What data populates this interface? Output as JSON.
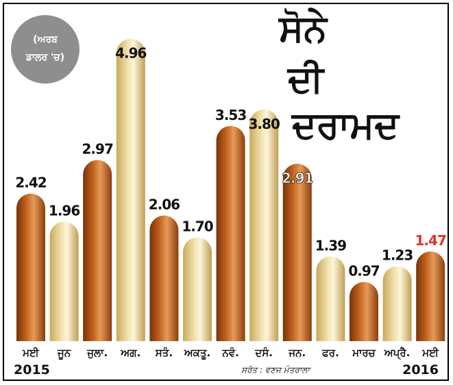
{
  "chart_data": {
    "type": "bar",
    "title": [
      "ਸੋਨੇ",
      "ਦੀ",
      "ਦਰਾਮਦ"
    ],
    "unit_label": [
      "(ਅਰਬ",
      "ਡਾਲਰ 'ਚ)"
    ],
    "categories": [
      "ਮਈ",
      "ਜੂਨ",
      "ਜੁਲਾ.",
      "ਅਗ.",
      "ਸਤੰ.",
      "ਅਕਤੂ.",
      "ਨਵੰ.",
      "ਦਸੰ.",
      "ਜਨ.",
      "ਫਰ.",
      "ਮਾਰਚ",
      "ਅਪ੍ਰੈ.",
      "ਮਈ"
    ],
    "values": [
      2.42,
      1.96,
      2.97,
      4.96,
      2.06,
      1.7,
      3.53,
      3.8,
      2.91,
      1.39,
      0.97,
      1.23,
      1.47
    ],
    "value_labels": [
      "2.42",
      "1.96",
      "2.97",
      "4.96",
      "2.06",
      "1.70",
      "3.53",
      "3.80",
      "2.91",
      "1.39",
      "0.97",
      "1.23",
      "1.47"
    ],
    "bar_colors": [
      "dark",
      "light",
      "dark",
      "light",
      "dark",
      "light",
      "dark",
      "light",
      "dark",
      "light",
      "dark",
      "light",
      "dark"
    ],
    "year_start": "2015",
    "year_end": "2016",
    "source": "ਸਰੋਤ : ਵਣਜ ਮੰਤਰਾਲਾ",
    "ylim": [
      0,
      5
    ],
    "grid": false,
    "legend": "none",
    "colors": {
      "dark_bar": "#b5561c",
      "dark_highlight": "#e9a06a",
      "light_bar": "#e8d39a",
      "light_highlight": "#fdf6dc",
      "value_text": "#111111",
      "value_text_on_dark": "#ffffff",
      "highlight_value": "#e0342a",
      "badge": "#8e8e8e"
    }
  }
}
